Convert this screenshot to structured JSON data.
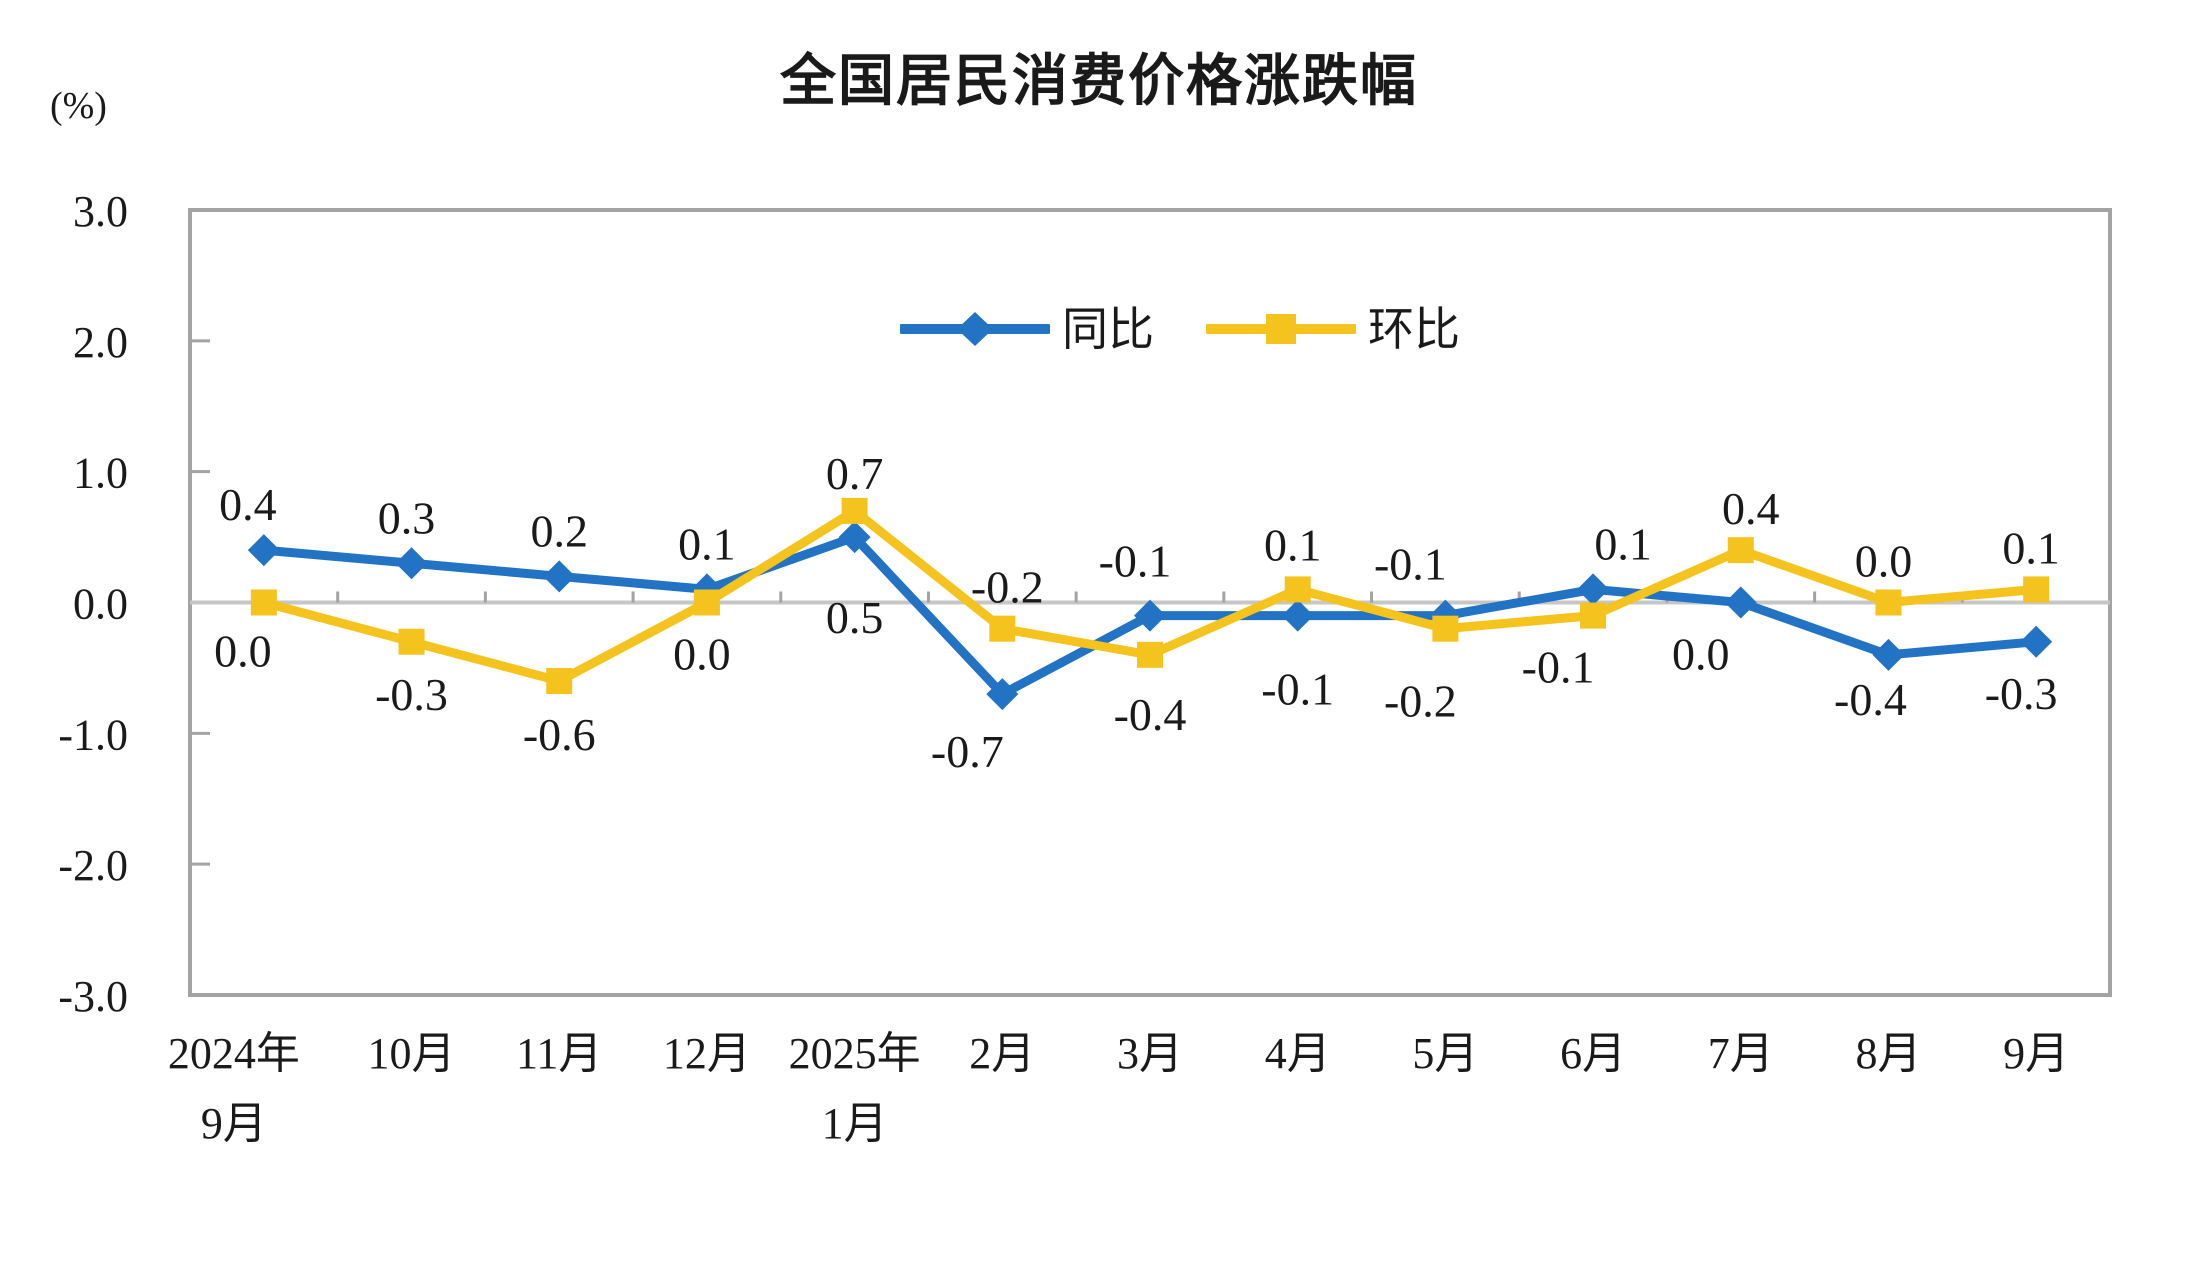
{
  "chart_data": {
    "type": "line",
    "title": "全国居民消费价格涨跌幅",
    "unit_label": "(%)",
    "legend_position": "top-center-inside",
    "grid": "zero-line-only",
    "y_axis": {
      "min": -3.0,
      "max": 3.0,
      "step": 1.0,
      "tick_labels": [
        "3.0",
        "2.0",
        "1.0",
        "0.0",
        "-1.0",
        "-2.0",
        "-3.0"
      ]
    },
    "categories": [
      [
        "2024年",
        "9月"
      ],
      [
        "10月"
      ],
      [
        "11月"
      ],
      [
        "12月"
      ],
      [
        "2025年",
        "1月"
      ],
      [
        "2月"
      ],
      [
        "3月"
      ],
      [
        "4月"
      ],
      [
        "5月"
      ],
      [
        "6月"
      ],
      [
        "7月"
      ],
      [
        "8月"
      ],
      [
        "9月"
      ]
    ],
    "category_dx": [
      -30,
      0,
      0,
      0,
      0,
      0,
      0,
      0,
      0,
      0,
      0,
      0,
      0
    ],
    "series": [
      {
        "id": "yoy",
        "name": "同比",
        "color": "#2273C3",
        "marker": "diamond",
        "values": [
          0.4,
          0.3,
          0.2,
          0.1,
          0.5,
          -0.7,
          -0.1,
          -0.1,
          -0.1,
          0.1,
          0.0,
          -0.4,
          -0.3
        ],
        "label_placement": [
          "above",
          "above",
          "above",
          "above",
          "below",
          "below",
          "above",
          "below",
          "above",
          "above",
          "below",
          "below",
          "below"
        ],
        "label_dx": [
          -16,
          -5,
          0,
          0,
          0,
          -35,
          -15,
          0,
          -35,
          30,
          -40,
          -18,
          -15
        ],
        "label_dy": [
          -30,
          -30,
          -30,
          -30,
          96,
          73,
          -39,
          89,
          -36,
          -30,
          67,
          60,
          67
        ]
      },
      {
        "id": "mom",
        "name": "环比",
        "color": "#F4C31D",
        "marker": "square",
        "values": [
          0.0,
          -0.3,
          -0.6,
          0.0,
          0.7,
          -0.2,
          -0.4,
          0.1,
          -0.2,
          -0.1,
          0.4,
          0.0,
          0.1
        ],
        "label_placement": [
          "below",
          "below",
          "below",
          "below",
          "above",
          "above",
          "below",
          "above",
          "below",
          "below",
          "above",
          "above",
          "above"
        ],
        "label_dx": [
          -21,
          0,
          0,
          -5,
          0,
          5,
          0,
          -5,
          -25,
          -35,
          10,
          -5,
          -5
        ],
        "label_dy": [
          64,
          68,
          69,
          67,
          -22,
          -26,
          75,
          -29,
          88,
          67,
          -26,
          -26,
          -26
        ]
      }
    ],
    "colors": {
      "axis_border": "#A3A3A3",
      "zero_line": "#C6C6C6",
      "tick": "#A3A3A3",
      "text": "#1a1a1a"
    }
  }
}
